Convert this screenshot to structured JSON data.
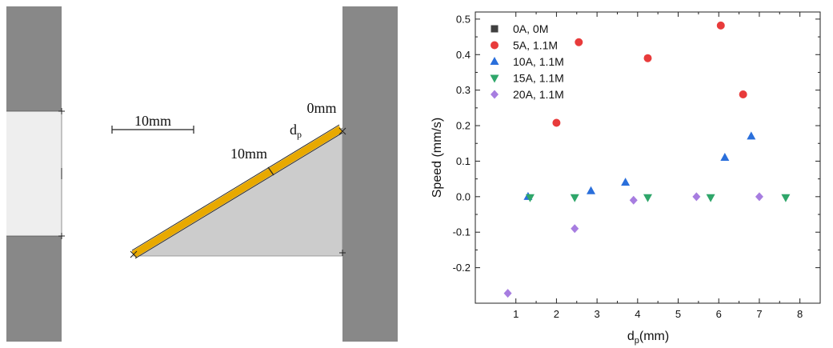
{
  "diagram": {
    "scale_bar_label": "10mm",
    "mid_label": "10mm",
    "top_label": "0mm",
    "dp_label": {
      "main": "d",
      "sub": "p"
    }
  },
  "chart_data": {
    "type": "scatter",
    "title": "",
    "xlabel": {
      "main": "d",
      "sub": "p",
      "rest": "(mm)"
    },
    "ylabel": "Speed (mm/s)",
    "xlim": [
      0,
      8.5
    ],
    "ylim": [
      -0.3,
      0.52
    ],
    "xticks": [
      1,
      2,
      3,
      4,
      5,
      6,
      7,
      8
    ],
    "yticks": [
      -0.2,
      -0.1,
      0.0,
      0.1,
      0.2,
      0.3,
      0.4,
      0.5
    ],
    "ytick_labels": [
      "-0.2",
      "-0.1",
      "0.0",
      "0.1",
      "0.2",
      "0.3",
      "0.4",
      "0.5"
    ],
    "legend_position": "top-left",
    "series": [
      {
        "name": "0A, 0M",
        "marker": "square",
        "color": "#404040",
        "points": []
      },
      {
        "name": "5A, 1.1M",
        "marker": "circle",
        "color": "#e83b3b",
        "points": [
          [
            2.0,
            0.208
          ],
          [
            2.55,
            0.435
          ],
          [
            4.25,
            0.39
          ],
          [
            6.05,
            0.482
          ],
          [
            6.6,
            0.288
          ]
        ]
      },
      {
        "name": "10A, 1.1M",
        "marker": "triangle-up",
        "color": "#2a6fdb",
        "points": [
          [
            1.3,
            0.0
          ],
          [
            2.85,
            0.016
          ],
          [
            3.7,
            0.04
          ],
          [
            6.15,
            0.11
          ],
          [
            6.8,
            0.17
          ]
        ]
      },
      {
        "name": "15A, 1.1M",
        "marker": "triangle-down",
        "color": "#2fa66a",
        "points": [
          [
            1.35,
            -0.002
          ],
          [
            2.45,
            -0.002
          ],
          [
            4.25,
            -0.002
          ],
          [
            5.8,
            -0.002
          ],
          [
            7.65,
            -0.002
          ]
        ]
      },
      {
        "name": "20A, 1.1M",
        "marker": "diamond",
        "color": "#a77de0",
        "points": [
          [
            0.8,
            -0.272
          ],
          [
            2.45,
            -0.09
          ],
          [
            3.9,
            -0.01
          ],
          [
            5.45,
            0.0
          ],
          [
            7.0,
            0.0
          ]
        ]
      }
    ]
  }
}
